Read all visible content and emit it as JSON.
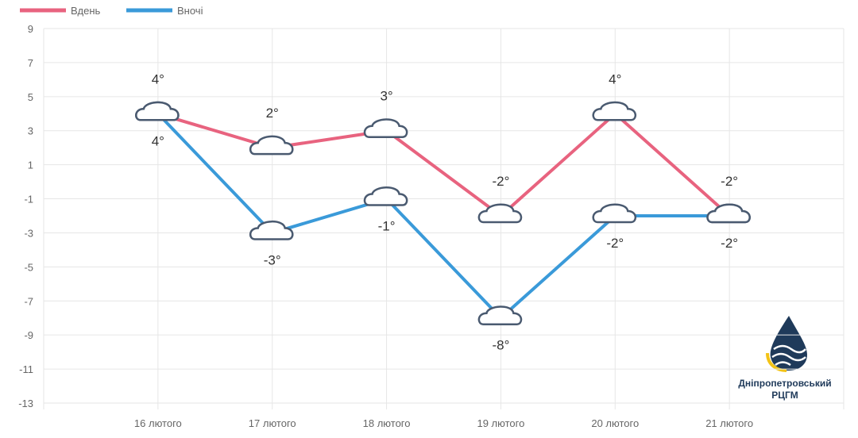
{
  "chart_data": {
    "type": "line",
    "categories": [
      "16 лютого",
      "17 лютого",
      "18 лютого",
      "19 лютого",
      "20 лютого",
      "21 лютого"
    ],
    "series": [
      {
        "name": "Вдень",
        "color": "#e8637f",
        "values": [
          4,
          2,
          3,
          -2,
          4,
          -2
        ],
        "value_labels": [
          "4°",
          "2°",
          "3°",
          "-2°",
          "4°",
          "-2°"
        ]
      },
      {
        "name": "Вночі",
        "color": "#3a9ad9",
        "values": [
          4,
          -3,
          -1,
          -8,
          -2,
          -2
        ],
        "value_labels": [
          "4°",
          "-3°",
          "-1°",
          "-8°",
          "-2°",
          "-2°"
        ]
      }
    ],
    "ylim": [
      -13,
      9
    ],
    "yticks": [
      -13,
      -11,
      -9,
      -7,
      -5,
      -3,
      -1,
      1,
      3,
      5,
      7,
      9
    ],
    "grid": true,
    "legend": "top-left"
  },
  "logo": {
    "line1": "Дніпропетровський",
    "line2": "РЦГМ"
  }
}
